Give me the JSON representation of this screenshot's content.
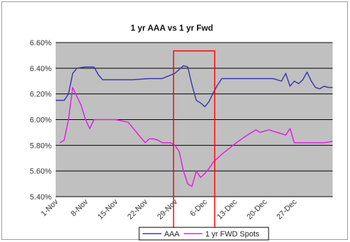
{
  "chart_data": {
    "type": "line",
    "title": "1 yr AAA vs 1 yr Fwd",
    "xlabel": "",
    "ylabel": "",
    "ylim": [
      0.054,
      0.066
    ],
    "yticks": [
      {
        "value": 0.066,
        "label": "6.60%"
      },
      {
        "value": 0.064,
        "label": "6.40%"
      },
      {
        "value": 0.062,
        "label": "6.20%"
      },
      {
        "value": 0.06,
        "label": "6.00%"
      },
      {
        "value": 0.058,
        "label": "5.80%"
      },
      {
        "value": 0.056,
        "label": "5.60%"
      },
      {
        "value": 0.054,
        "label": "5.40%"
      }
    ],
    "xlim": [
      "1-Nov",
      "5-Jan"
    ],
    "xticks": [
      "1-Nov",
      "8-Nov",
      "15-Nov",
      "22-Nov",
      "29-Nov",
      "6-Dec",
      "13-Dec",
      "20-Dec",
      "27-Dec"
    ],
    "grid": "horizontal",
    "plot_background": "#c0c0c0",
    "legend_position": "bottom",
    "series": [
      {
        "name": "AAA",
        "color": "#3a3ab0",
        "x": [
          "1-Nov",
          "3-Nov",
          "4-Nov",
          "5-Nov",
          "6-Nov",
          "8-Nov",
          "9-Nov",
          "10-Nov",
          "11-Nov",
          "12-Nov",
          "15-Nov",
          "19-Nov",
          "23-Nov",
          "26-Nov",
          "29-Nov",
          "1-Dec",
          "2-Dec",
          "3-Dec",
          "4-Dec",
          "5-Dec",
          "6-Dec",
          "7-Dec",
          "8-Dec",
          "9-Dec",
          "10-Dec",
          "16-Dec",
          "22-Dec",
          "24-Dec",
          "25-Dec",
          "26-Dec",
          "27-Dec",
          "28-Dec",
          "29-Dec",
          "30-Dec",
          "31-Dec",
          "1-Jan",
          "2-Jan",
          "3-Jan",
          "4-Jan",
          "5-Jan"
        ],
        "values": [
          0.0615,
          0.0615,
          0.062,
          0.0636,
          0.064,
          0.0641,
          0.0641,
          0.0641,
          0.0635,
          0.0631,
          0.0631,
          0.0631,
          0.0632,
          0.0632,
          0.0636,
          0.0642,
          0.0641,
          0.0627,
          0.0615,
          0.0613,
          0.061,
          0.0614,
          0.0621,
          0.0627,
          0.0632,
          0.0632,
          0.0632,
          0.063,
          0.0636,
          0.0626,
          0.063,
          0.0628,
          0.0631,
          0.0637,
          0.063,
          0.0625,
          0.0624,
          0.0626,
          0.0625,
          0.0625
        ]
      },
      {
        "name": "1 yr FWD Spots",
        "color": "#e020e0",
        "x": [
          "2-Nov",
          "3-Nov",
          "4-Nov",
          "5-Nov",
          "6-Nov",
          "7-Nov",
          "8-Nov",
          "9-Nov",
          "10-Nov",
          "11-Nov",
          "12-Nov",
          "15-Nov",
          "18-Nov",
          "20-Nov",
          "22-Nov",
          "23-Nov",
          "24-Nov",
          "25-Nov",
          "26-Nov",
          "28-Nov",
          "29-Nov",
          "30-Nov",
          "1-Dec",
          "2-Dec",
          "3-Dec",
          "4-Dec",
          "5-Dec",
          "6-Dec",
          "7-Dec",
          "8-Dec",
          "10-Dec",
          "13-Dec",
          "16-Dec",
          "18-Dec",
          "19-Dec",
          "21-Dec",
          "23-Dec",
          "25-Dec",
          "26-Dec",
          "27-Dec",
          "29-Dec",
          "1-Jan",
          "3-Jan",
          "5-Jan"
        ],
        "values": [
          0.0582,
          0.0584,
          0.06,
          0.0625,
          0.0618,
          0.0611,
          0.06,
          0.0593,
          0.06,
          0.06,
          0.06,
          0.06,
          0.0598,
          0.059,
          0.0582,
          0.0585,
          0.0585,
          0.0584,
          0.0582,
          0.0582,
          0.058,
          0.0575,
          0.056,
          0.055,
          0.0548,
          0.056,
          0.0555,
          0.0558,
          0.0562,
          0.0567,
          0.0573,
          0.0581,
          0.0588,
          0.0592,
          0.059,
          0.0592,
          0.059,
          0.0588,
          0.0593,
          0.0582,
          0.0582,
          0.0582,
          0.0582,
          0.0583
        ]
      }
    ],
    "highlight": {
      "from": "29-Nov",
      "to": "8-Dec",
      "color": "#ff0000"
    }
  }
}
